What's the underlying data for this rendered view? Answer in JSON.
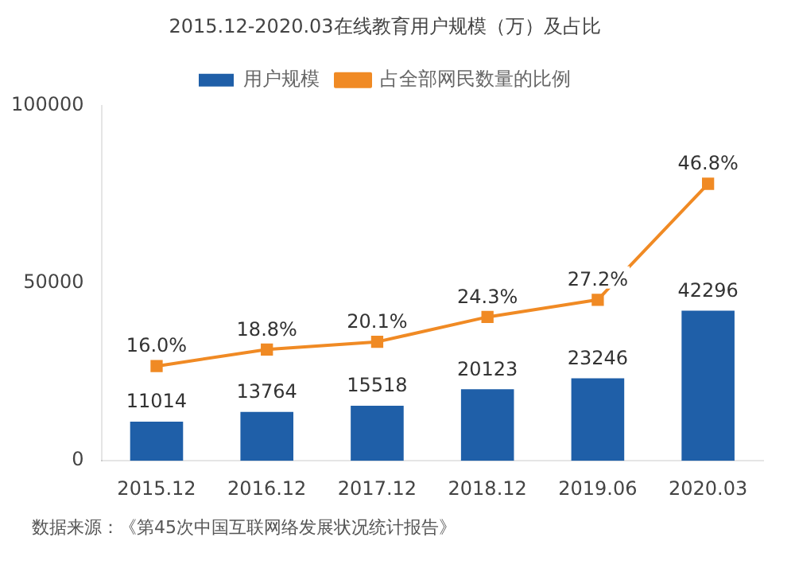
{
  "chart_data": {
    "type": "bar",
    "title": "2015.12-2020.03在线教育用户规模（万）及占比",
    "categories": [
      "2015.12",
      "2016.12",
      "2017.12",
      "2018.12",
      "2019.06",
      "2020.03"
    ],
    "series": [
      {
        "name": "用户规模",
        "color": "#1f5fa8",
        "values": [
          11014,
          13764,
          15518,
          20123,
          23246,
          42296
        ],
        "value_labels": [
          "11014",
          "13764",
          "15518",
          "20123",
          "23246",
          "42296"
        ]
      },
      {
        "name": "占全部网民数量的比例",
        "type": "line",
        "axis": "y2",
        "color": "#f08a24",
        "marker": "square",
        "values": [
          16.0,
          18.8,
          20.1,
          24.3,
          27.2,
          46.8
        ],
        "value_labels": [
          "16.0%",
          "18.8%",
          "20.1%",
          "24.3%",
          "27.2%",
          "46.8%"
        ]
      }
    ],
    "ylim": [
      0,
      100000
    ],
    "yticks": [
      0,
      50000,
      100000
    ],
    "y2lim": [
      0,
      60
    ],
    "grid": false,
    "legend": "top",
    "annotations": [
      "数据来源：《第45次中国互联网络发展状况统计报告》"
    ]
  }
}
